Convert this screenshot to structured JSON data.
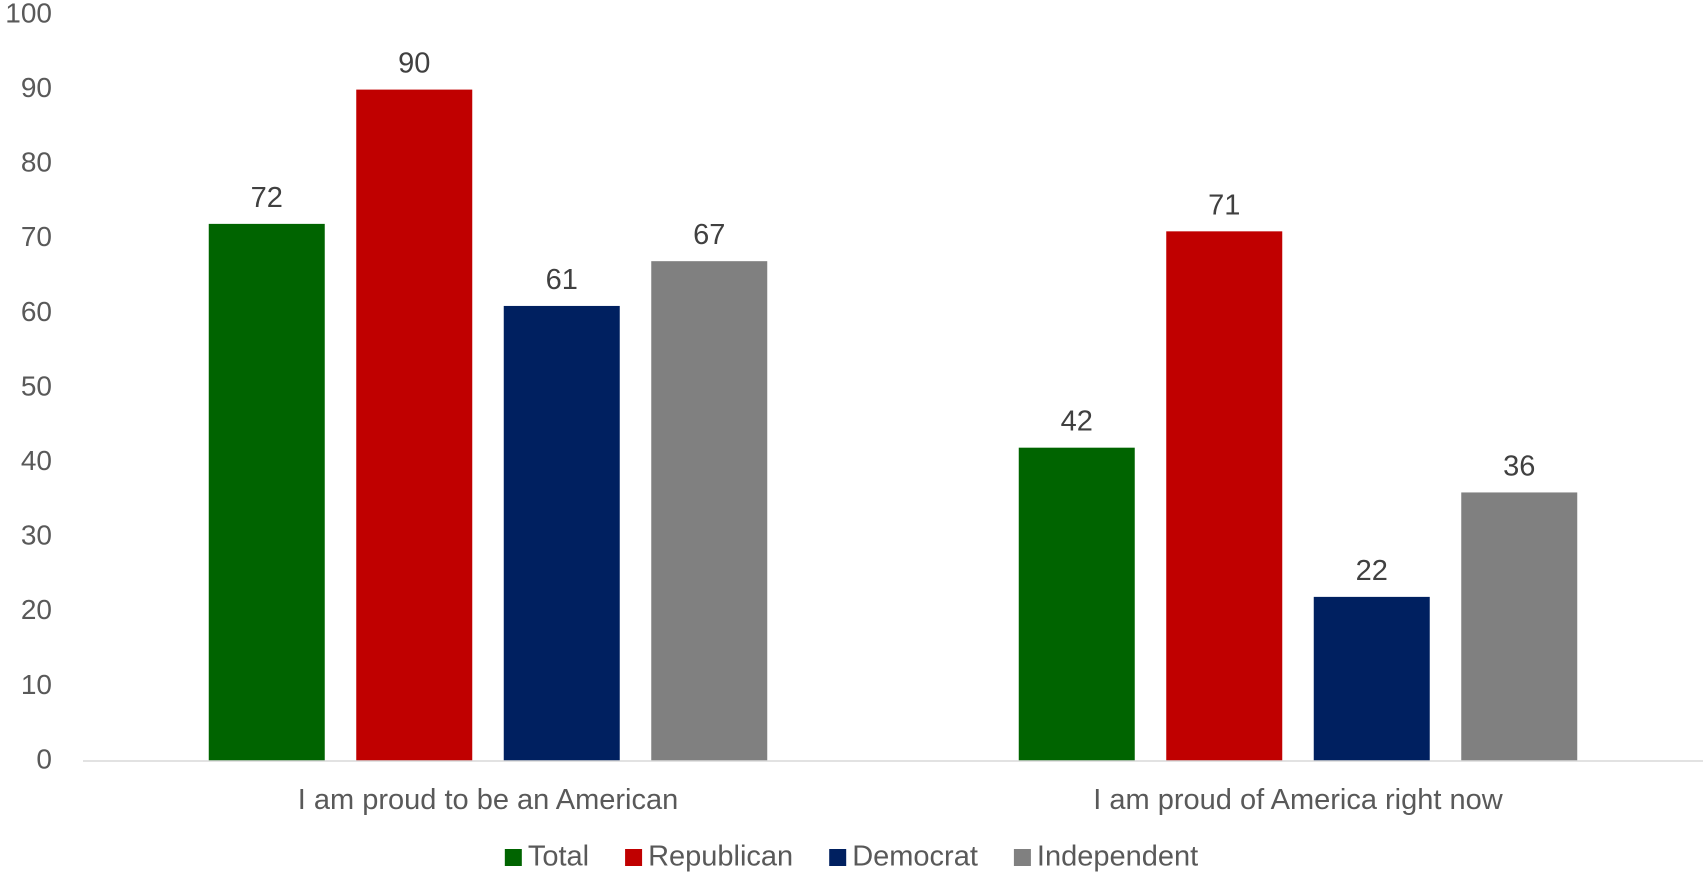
{
  "chart_data": {
    "type": "bar",
    "categories": [
      "I am proud to be an American",
      "I am proud of America right now"
    ],
    "series": [
      {
        "name": "Total",
        "values": [
          72,
          42
        ],
        "color": "#006400"
      },
      {
        "name": "Republican",
        "values": [
          90,
          71
        ],
        "color": "#C00000"
      },
      {
        "name": "Democrat",
        "values": [
          61,
          22
        ],
        "color": "#002060"
      },
      {
        "name": "Independent",
        "values": [
          67,
          36
        ],
        "color": "#808080"
      }
    ],
    "ylim": [
      0,
      100
    ],
    "yticks": [
      "0",
      "10",
      "20",
      "30",
      "40",
      "50",
      "60",
      "70",
      "80",
      "90",
      "100"
    ],
    "data_labels": true,
    "grid": false,
    "legend_position": "bottom"
  }
}
